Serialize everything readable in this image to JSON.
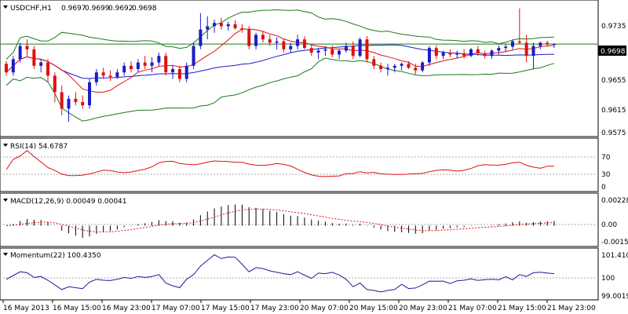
{
  "chart_data": {
    "type": "candlestick",
    "symbol_label": "USDCHF,H1",
    "ohlc_header": [
      "0.9697",
      "0.9699",
      "0.9692",
      "0.9698"
    ],
    "colors": {
      "up": "#1c1cc8",
      "down": "#e01010",
      "bands": "#1a7a1a",
      "ma_red": "#e01010",
      "ma_blue": "#1c1cc8",
      "rsi": "#e01010",
      "macd_signal": "#e01010",
      "momentum": "#1c1c9c",
      "price_line": "#1a7a1a"
    },
    "x_labels": [
      "16 May 2013",
      "16 May 15:00",
      "16 May 23:00",
      "17 May 07:00",
      "17 May 15:00",
      "17 May 23:00",
      "20 May 07:00",
      "20 May 15:00",
      "20 May 23:00",
      "21 May 07:00",
      "21 May 15:00",
      "21 May 23:00"
    ],
    "price": {
      "ylim": [
        0.956,
        0.976
      ],
      "y_ticks": [
        "0.9735",
        "0.9695",
        "0.9655",
        "0.9615",
        "0.9575"
      ],
      "current_label": "0.9698",
      "current_value": 0.9698,
      "candles": [
        [
          0.9668,
          0.9672,
          0.965,
          0.9655
        ],
        [
          0.9655,
          0.968,
          0.965,
          0.9675
        ],
        [
          0.9675,
          0.97,
          0.967,
          0.9695
        ],
        [
          0.9695,
          0.9705,
          0.968,
          0.969
        ],
        [
          0.969,
          0.9695,
          0.966,
          0.9665
        ],
        [
          0.9665,
          0.9675,
          0.9655,
          0.967
        ],
        [
          0.967,
          0.9675,
          0.964,
          0.965
        ],
        [
          0.965,
          0.9655,
          0.961,
          0.9625
        ],
        [
          0.9625,
          0.9635,
          0.959,
          0.96
        ],
        [
          0.96,
          0.962,
          0.958,
          0.9615
        ],
        [
          0.9615,
          0.9625,
          0.9605,
          0.961
        ],
        [
          0.961,
          0.962,
          0.96,
          0.9605
        ],
        [
          0.9605,
          0.9645,
          0.96,
          0.964
        ],
        [
          0.964,
          0.966,
          0.9635,
          0.9655
        ],
        [
          0.9655,
          0.9662,
          0.9645,
          0.965
        ],
        [
          0.965,
          0.9658,
          0.9642,
          0.9648
        ],
        [
          0.9648,
          0.966,
          0.9645,
          0.9655
        ],
        [
          0.9655,
          0.967,
          0.965,
          0.9665
        ],
        [
          0.9665,
          0.9672,
          0.9655,
          0.966
        ],
        [
          0.966,
          0.9675,
          0.9655,
          0.967
        ],
        [
          0.967,
          0.968,
          0.966,
          0.9665
        ],
        [
          0.9665,
          0.9678,
          0.9655,
          0.967
        ],
        [
          0.967,
          0.9685,
          0.9665,
          0.968
        ],
        [
          0.968,
          0.9685,
          0.965,
          0.9655
        ],
        [
          0.9655,
          0.9665,
          0.9645,
          0.966
        ],
        [
          0.966,
          0.9665,
          0.964,
          0.9645
        ],
        [
          0.9645,
          0.967,
          0.964,
          0.9665
        ],
        [
          0.9665,
          0.97,
          0.966,
          0.9695
        ],
        [
          0.9695,
          0.9745,
          0.969,
          0.972
        ],
        [
          0.972,
          0.974,
          0.9705,
          0.9725
        ],
        [
          0.9725,
          0.9735,
          0.9715,
          0.973
        ],
        [
          0.973,
          0.9738,
          0.972,
          0.9725
        ],
        [
          0.9725,
          0.9732,
          0.9718,
          0.9728
        ],
        [
          0.9728,
          0.9734,
          0.972,
          0.9722
        ],
        [
          0.9722,
          0.9728,
          0.9715,
          0.972
        ],
        [
          0.972,
          0.9725,
          0.969,
          0.9695
        ],
        [
          0.9695,
          0.9715,
          0.969,
          0.9712
        ],
        [
          0.9712,
          0.9718,
          0.97,
          0.9705
        ],
        [
          0.9705,
          0.9712,
          0.9695,
          0.97
        ],
        [
          0.97,
          0.9708,
          0.969,
          0.9702
        ],
        [
          0.9702,
          0.9706,
          0.9685,
          0.969
        ],
        [
          0.969,
          0.97,
          0.9685,
          0.9695
        ],
        [
          0.9695,
          0.9712,
          0.969,
          0.9705
        ],
        [
          0.9705,
          0.971,
          0.969,
          0.9692
        ],
        [
          0.9692,
          0.9698,
          0.968,
          0.9685
        ],
        [
          0.9685,
          0.9692,
          0.9675,
          0.9688
        ],
        [
          0.9688,
          0.9695,
          0.968,
          0.969
        ],
        [
          0.969,
          0.9696,
          0.9678,
          0.9682
        ],
        [
          0.9682,
          0.969,
          0.9675,
          0.9688
        ],
        [
          0.9688,
          0.97,
          0.9685,
          0.9695
        ],
        [
          0.9695,
          0.9702,
          0.9675,
          0.968
        ],
        [
          0.968,
          0.9708,
          0.9678,
          0.9705
        ],
        [
          0.9705,
          0.971,
          0.967,
          0.9675
        ],
        [
          0.9675,
          0.968,
          0.966,
          0.9665
        ],
        [
          0.9665,
          0.967,
          0.9655,
          0.966
        ],
        [
          0.966,
          0.9668,
          0.965,
          0.9662
        ],
        [
          0.9662,
          0.9668,
          0.9655,
          0.9665
        ],
        [
          0.9665,
          0.967,
          0.9658,
          0.9668
        ],
        [
          0.9668,
          0.9672,
          0.966,
          0.9662
        ],
        [
          0.9662,
          0.9668,
          0.9652,
          0.9658
        ],
        [
          0.9658,
          0.9672,
          0.9655,
          0.967
        ],
        [
          0.967,
          0.9695,
          0.9665,
          0.9692
        ],
        [
          0.9692,
          0.9696,
          0.9675,
          0.968
        ],
        [
          0.968,
          0.9688,
          0.9675,
          0.9685
        ],
        [
          0.9685,
          0.969,
          0.9678,
          0.9682
        ],
        [
          0.9682,
          0.9688,
          0.9676,
          0.9684
        ],
        [
          0.9684,
          0.969,
          0.9676,
          0.968
        ],
        [
          0.968,
          0.9692,
          0.9678,
          0.969
        ],
        [
          0.969,
          0.9695,
          0.968,
          0.9684
        ],
        [
          0.9684,
          0.9688,
          0.9676,
          0.968
        ],
        [
          0.968,
          0.969,
          0.9676,
          0.9688
        ],
        [
          0.9688,
          0.9696,
          0.9682,
          0.9692
        ],
        [
          0.9692,
          0.9698,
          0.9686,
          0.9694
        ],
        [
          0.9694,
          0.9705,
          0.969,
          0.9702
        ],
        [
          0.9702,
          0.9752,
          0.9698,
          0.97
        ],
        [
          0.97,
          0.9712,
          0.967,
          0.968
        ],
        [
          0.968,
          0.97,
          0.966,
          0.9695
        ],
        [
          0.9695,
          0.9702,
          0.969,
          0.97
        ],
        [
          0.97,
          0.9703,
          0.9694,
          0.9698
        ],
        [
          0.9697,
          0.9699,
          0.9692,
          0.9698
        ]
      ]
    },
    "rsi": {
      "label": "RSI(14) 54.6787",
      "levels": [
        "70",
        "30"
      ],
      "zero_label": "0",
      "ylim": [
        0,
        100
      ]
    },
    "macd": {
      "label": "MACD(12,26,9) 0.00049 0.00041",
      "y_ticks": [
        "0.00228",
        "0.00",
        "-0.00151"
      ],
      "ylim": [
        -0.0018,
        0.0026
      ]
    },
    "momentum": {
      "label": "Momentum(22) 100.4350",
      "y_ticks": [
        "101.4105",
        "100",
        "99.0019"
      ],
      "ylim": [
        98.95,
        101.55
      ]
    }
  }
}
